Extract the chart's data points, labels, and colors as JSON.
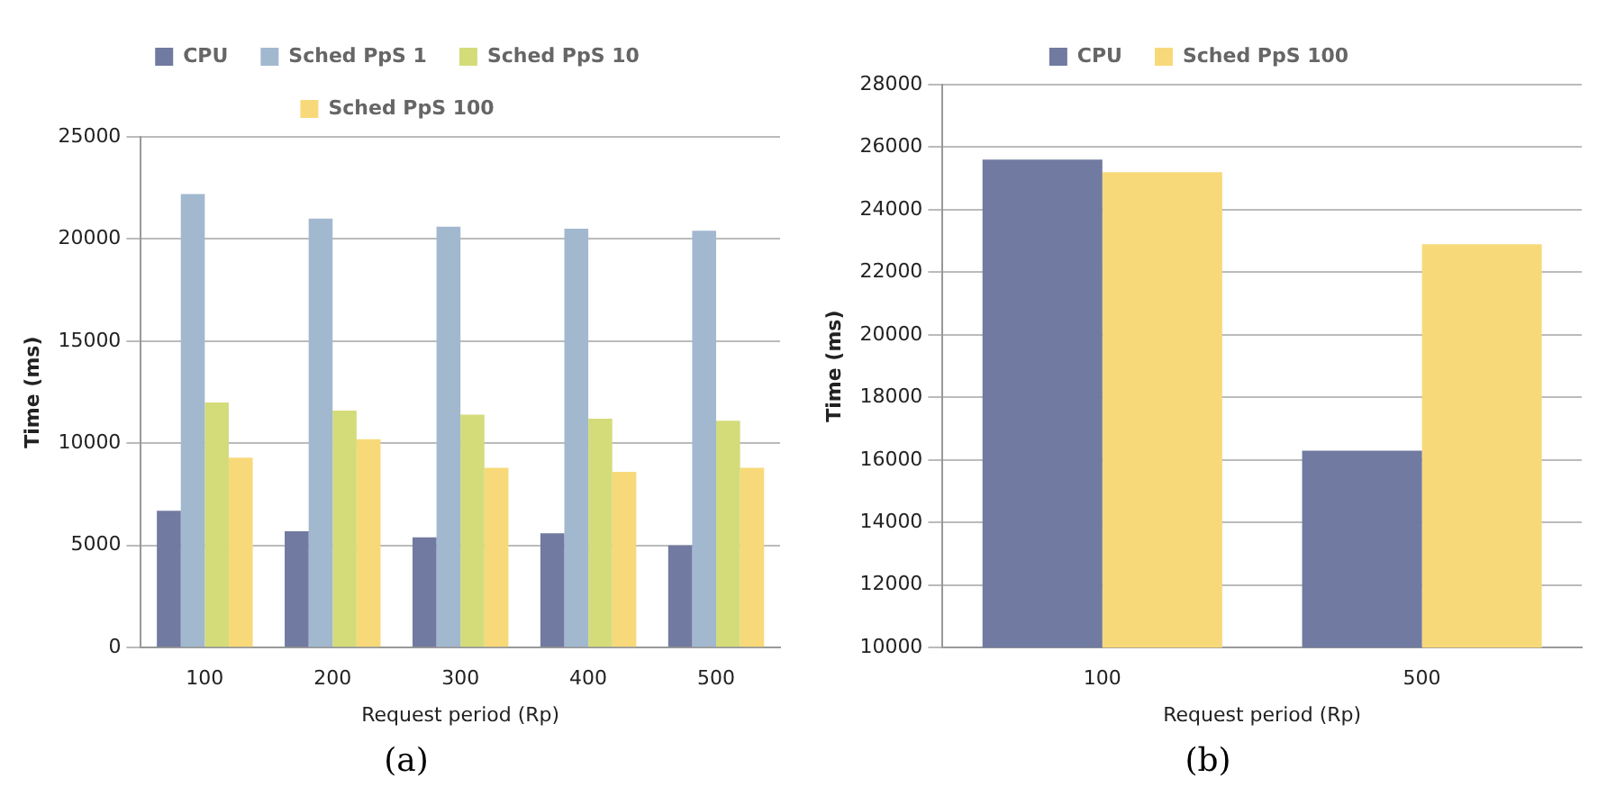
{
  "chart_data": [
    {
      "type": "bar",
      "xlabel": "Request period (Rp)",
      "ylabel": "Time (ms)",
      "categories": [
        "100",
        "200",
        "300",
        "400",
        "500"
      ],
      "series": [
        {
          "name": "CPU",
          "color": "#717aa0",
          "values": [
            6700,
            5700,
            5400,
            5600,
            5000
          ]
        },
        {
          "name": "Sched PpS 1",
          "color": "#a2b8cf",
          "values": [
            22200,
            21000,
            20600,
            20500,
            20400
          ]
        },
        {
          "name": "Sched PpS 10",
          "color": "#d4dc7a",
          "values": [
            12000,
            11600,
            11400,
            11200,
            11100
          ]
        },
        {
          "name": "Sched PpS 100",
          "color": "#f8d97a",
          "values": [
            9300,
            10200,
            8800,
            8600,
            8800
          ]
        }
      ],
      "ylim": [
        0,
        25000
      ],
      "yticks": [
        0,
        5000,
        10000,
        15000,
        20000,
        25000
      ],
      "grid": "y",
      "legend": "top",
      "annotations": [
        "(a)"
      ]
    },
    {
      "type": "bar",
      "xlabel": "Request period (Rp)",
      "ylabel": "Time (ms)",
      "categories": [
        "100",
        "500"
      ],
      "series": [
        {
          "name": "CPU",
          "color": "#717aa0",
          "values": [
            25600,
            16300
          ]
        },
        {
          "name": "Sched PpS 100",
          "color": "#f8d97a",
          "values": [
            25200,
            22900
          ]
        }
      ],
      "ylim": [
        10000,
        28000
      ],
      "yticks": [
        10000,
        12000,
        14000,
        16000,
        18000,
        20000,
        22000,
        24000,
        26000,
        28000
      ],
      "grid": "y",
      "legend": "top",
      "annotations": [
        "(b)"
      ]
    }
  ]
}
